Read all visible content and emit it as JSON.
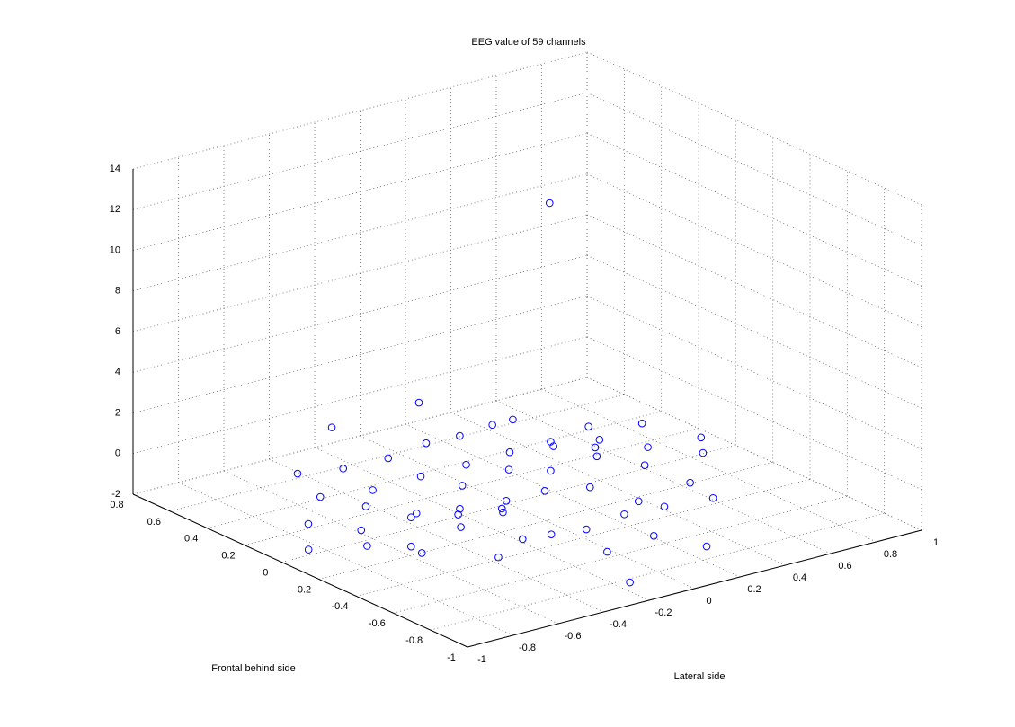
{
  "chart_data": {
    "type": "scatter3d",
    "title": "EEG value of 59 channels",
    "xlabel": "Lateral side",
    "ylabel": "Frontal behind side",
    "color": "#0000ff",
    "grid": true,
    "xlim": [
      -1,
      1
    ],
    "ylim": [
      -1,
      0.8
    ],
    "zlim": [
      -2,
      14
    ],
    "xticks": [
      -1,
      -0.8,
      -0.6,
      -0.4,
      -0.2,
      0,
      0.2,
      0.4,
      0.6,
      0.8,
      1
    ],
    "yticks": [
      -1,
      -0.8,
      -0.6,
      -0.4,
      -0.2,
      0,
      0.2,
      0.4,
      0.6,
      0.8
    ],
    "zticks": [
      -2,
      0,
      2,
      4,
      6,
      8,
      10,
      12,
      14
    ],
    "x": [
      0.18,
      -0.15,
      -0.37,
      0.28,
      0.19,
      0.45,
      0.62,
      0.7,
      0.4,
      0.03,
      -0.11,
      0.25,
      0.23,
      0.34,
      0.49,
      0.07,
      0.61,
      -0.31,
      0.29,
      -0.13,
      -0.5,
      0.37,
      -0.66,
      -0.33,
      -0.04,
      0.07,
      0.39,
      -0.27,
      0.08,
      -0.55,
      -0.07,
      -0.74,
      0.36,
      -0.24,
      0.13,
      -0.67,
      0.17,
      -0.42,
      -0.3,
      -0.57,
      -0.32,
      -0.46,
      -0.61,
      0.01,
      -0.94,
      -0.53,
      -0.19,
      -0.83,
      -0.32,
      -0.04,
      -0.43,
      -0.79,
      -0.91,
      0.07,
      -0.98,
      -0.8,
      -0.27,
      -0.61,
      -0.26
    ],
    "y": [
      0,
      0.3,
      0.5,
      0.32,
      0.32,
      0.12,
      0.04,
      -0.18,
      0,
      0.3,
      0.31,
      0.08,
      0.04,
      -0.05,
      -0.15,
      0.08,
      -0.3,
      0.27,
      -0.12,
      0.07,
      0.28,
      -0.28,
      0.33,
      0.07,
      -0.05,
      -0.14,
      -0.5,
      -0.08,
      -0.34,
      0.06,
      -0.28,
      0.11,
      -0.66,
      -0.28,
      -0.54,
      -0.05,
      -0.63,
      -0.25,
      -0.33,
      -0.2,
      -0.36,
      -0.29,
      -0.22,
      -0.61,
      -0.07,
      -0.39,
      -0.65,
      -0.22,
      -0.62,
      -0.83,
      -0.6,
      -0.44,
      -0.35,
      -0.98,
      -0.12,
      -0.51,
      -0.86,
      -0.69,
      -0.97
    ],
    "z": [
      12.27,
      2.15,
      0.73,
      0,
      0,
      0,
      0,
      0,
      0,
      0,
      0,
      0,
      0,
      0,
      0,
      0,
      0,
      0,
      0,
      0,
      0,
      0,
      0,
      0,
      0,
      0,
      0,
      0,
      0,
      0,
      0,
      0,
      0,
      0,
      0,
      0,
      0,
      0,
      0,
      0,
      0,
      0,
      0,
      0,
      0,
      0,
      0,
      0,
      0,
      0,
      0,
      0,
      0,
      -0.21,
      -0.94,
      0,
      0,
      0,
      -1.07
    ]
  }
}
